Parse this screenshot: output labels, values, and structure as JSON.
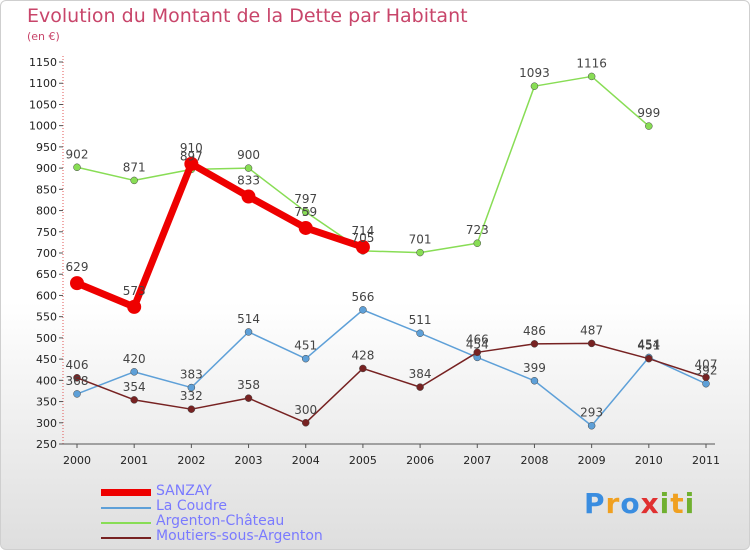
{
  "title": "Evolution du Montant de la Dette par Habitant",
  "subtitle": "(en €)",
  "brand": {
    "text": "Proxiti",
    "letters": [
      "P",
      "r",
      "o",
      "x",
      "i",
      "t",
      "i"
    ],
    "colors": [
      "#3a8de0",
      "#f0a020",
      "#3a8de0",
      "#e03030",
      "#70b030",
      "#f0a020",
      "#70b030"
    ]
  },
  "chart_data": {
    "type": "line",
    "title": "Evolution du Montant de la Dette par Habitant",
    "subtitle": "(en €)",
    "xlabel": "",
    "ylabel": "",
    "categories": [
      "2000",
      "2001",
      "2002",
      "2003",
      "2004",
      "2005",
      "2006",
      "2007",
      "2008",
      "2009",
      "2010",
      "2011"
    ],
    "ylim": [
      250,
      1150
    ],
    "yticks": [
      250,
      300,
      350,
      400,
      450,
      500,
      550,
      600,
      650,
      700,
      750,
      800,
      850,
      900,
      950,
      1000,
      1050,
      1100,
      1150
    ],
    "grid": false,
    "legend_position": "bottom-left",
    "series": [
      {
        "name": "SANZAY",
        "color": "#ee0000",
        "width": 7,
        "marker": 7,
        "values": [
          629,
          573,
          910,
          833,
          759,
          714,
          null,
          null,
          null,
          null,
          null,
          null
        ]
      },
      {
        "name": "La Coudre",
        "color": "#5ea0d8",
        "width": 1.5,
        "marker": 3.5,
        "values": [
          368,
          420,
          383,
          514,
          451,
          566,
          511,
          454,
          399,
          293,
          454,
          392
        ]
      },
      {
        "name": "Argenton-Château",
        "color": "#88dd55",
        "width": 1.5,
        "marker": 3.5,
        "values": [
          902,
          871,
          897,
          900,
          797,
          705,
          701,
          723,
          1093,
          1116,
          999,
          null
        ]
      },
      {
        "name": "Moutiers-sous-Argenton",
        "color": "#772222",
        "width": 1.5,
        "marker": 3.5,
        "values": [
          406,
          354,
          332,
          358,
          300,
          428,
          384,
          466,
          486,
          487,
          451,
          407
        ]
      }
    ]
  }
}
